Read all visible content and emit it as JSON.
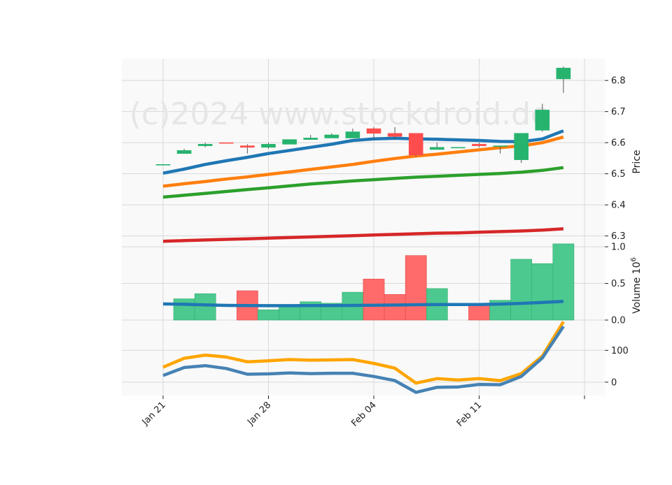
{
  "watermark": "(c)2024 www.stockdroid.de",
  "colors": {
    "up": "#26b36e",
    "down": "#ff4d4d",
    "ma_blue": "#1f77b4",
    "ma_orange": "#ff7f0e",
    "ma_green": "#2ca02c",
    "ma_red": "#d62728",
    "osc_orange": "#ffa500",
    "osc_blue": "#4682b4",
    "panel_bg": "#f9f9f9",
    "grid": "#d9d9d9",
    "wick": "#555555"
  },
  "chart_data": [
    {
      "type": "candlestick",
      "panel": "price",
      "ylabel": "Price",
      "ylim": [
        6.27,
        6.87
      ],
      "yticks": [
        6.3,
        6.4,
        6.5,
        6.6,
        6.7,
        6.8
      ],
      "xtick_labels": [
        {
          "label": "Jan 21",
          "index": 0
        },
        {
          "label": "Jan 28",
          "index": 5
        },
        {
          "label": "Feb 04",
          "index": 10
        },
        {
          "label": "Feb 11",
          "index": 15
        }
      ],
      "candles": [
        {
          "open": 6.53,
          "close": 6.53,
          "high": 6.53,
          "low": 6.53
        },
        {
          "open": 6.565,
          "close": 6.575,
          "high": 6.58,
          "low": 6.565
        },
        {
          "open": 6.59,
          "close": 6.595,
          "high": 6.6,
          "low": 6.585
        },
        {
          "open": 6.6,
          "close": 6.598,
          "high": 6.6,
          "low": 6.598
        },
        {
          "open": 6.59,
          "close": 6.585,
          "high": 6.595,
          "low": 6.565
        },
        {
          "open": 6.585,
          "close": 6.595,
          "high": 6.6,
          "low": 6.58
        },
        {
          "open": 6.595,
          "close": 6.61,
          "high": 6.61,
          "low": 6.595
        },
        {
          "open": 6.61,
          "close": 6.615,
          "high": 6.625,
          "low": 6.61
        },
        {
          "open": 6.615,
          "close": 6.625,
          "high": 6.63,
          "low": 6.615
        },
        {
          "open": 6.615,
          "close": 6.635,
          "high": 6.645,
          "low": 6.615
        },
        {
          "open": 6.645,
          "close": 6.63,
          "high": 6.65,
          "low": 6.61
        },
        {
          "open": 6.63,
          "close": 6.62,
          "high": 6.65,
          "low": 6.61
        },
        {
          "open": 6.63,
          "close": 6.56,
          "high": 6.63,
          "low": 6.555
        },
        {
          "open": 6.578,
          "close": 6.585,
          "high": 6.6,
          "low": 6.578
        },
        {
          "open": 6.585,
          "close": 6.585,
          "high": 6.585,
          "low": 6.585
        },
        {
          "open": 6.595,
          "close": 6.59,
          "high": 6.6,
          "low": 6.585
        },
        {
          "open": 6.59,
          "close": 6.59,
          "high": 6.59,
          "low": 6.565
        },
        {
          "open": 6.545,
          "close": 6.63,
          "high": 6.63,
          "low": 6.535
        },
        {
          "open": 6.64,
          "close": 6.705,
          "high": 6.725,
          "low": 6.635
        },
        {
          "open": 6.805,
          "close": 6.84,
          "high": 6.845,
          "low": 6.76
        }
      ],
      "moving_averages": [
        {
          "color_key": "ma_blue",
          "values": [
            6.502,
            6.515,
            6.53,
            6.542,
            6.553,
            6.565,
            6.575,
            6.585,
            6.595,
            6.607,
            6.612,
            6.614,
            6.612,
            6.611,
            6.609,
            6.607,
            6.604,
            6.603,
            6.612,
            6.638
          ]
        },
        {
          "color_key": "ma_orange",
          "values": [
            6.46,
            6.468,
            6.475,
            6.483,
            6.49,
            6.498,
            6.506,
            6.514,
            6.522,
            6.53,
            6.54,
            6.549,
            6.557,
            6.563,
            6.57,
            6.577,
            6.584,
            6.59,
            6.6,
            6.618
          ]
        },
        {
          "color_key": "ma_green",
          "values": [
            6.425,
            6.431,
            6.437,
            6.443,
            6.449,
            6.455,
            6.461,
            6.467,
            6.472,
            6.477,
            6.481,
            6.485,
            6.489,
            6.492,
            6.495,
            6.498,
            6.501,
            6.505,
            6.511,
            6.52
          ]
        },
        {
          "color_key": "ma_red",
          "values": [
            6.283,
            6.285,
            6.287,
            6.289,
            6.291,
            6.293,
            6.295,
            6.297,
            6.299,
            6.301,
            6.303,
            6.305,
            6.307,
            6.309,
            6.31,
            6.312,
            6.314,
            6.316,
            6.319,
            6.323
          ]
        }
      ]
    },
    {
      "type": "bar",
      "panel": "volume",
      "ylabel": "Volume  10",
      "ylabel_exponent": "6",
      "ylim": [
        0,
        1.02
      ],
      "yticks": [
        0.0,
        0.5,
        1.0
      ],
      "ytick_labels": [
        "0.0",
        "0.5",
        "1.0"
      ],
      "values": [
        0.0,
        0.29,
        0.36,
        0.0,
        0.4,
        0.14,
        0.2,
        0.25,
        0.23,
        0.38,
        0.56,
        0.35,
        0.88,
        0.43,
        0.0,
        0.23,
        0.27,
        0.83,
        0.77,
        1.04
      ],
      "moving_average": [
        0.22,
        0.215,
        0.207,
        0.2,
        0.198,
        0.196,
        0.196,
        0.197,
        0.198,
        0.2,
        0.202,
        0.205,
        0.21,
        0.212,
        0.212,
        0.212,
        0.218,
        0.228,
        0.24,
        0.255
      ]
    },
    {
      "type": "line",
      "panel": "oscillator",
      "ylim": [
        -42,
        195
      ],
      "yticks": [
        0,
        100
      ],
      "series": [
        {
          "color_key": "osc_orange",
          "values": [
            47,
            75,
            85,
            79,
            64,
            67,
            71,
            69,
            70,
            71,
            59,
            44,
            -3,
            11,
            7,
            11,
            5,
            27,
            82,
            190
          ]
        },
        {
          "color_key": "osc_blue",
          "values": [
            21,
            46,
            52,
            43,
            25,
            26,
            29,
            27,
            28,
            28,
            18,
            5,
            -32,
            -16,
            -15,
            -7,
            -8,
            18,
            76,
            175
          ]
        }
      ]
    }
  ]
}
